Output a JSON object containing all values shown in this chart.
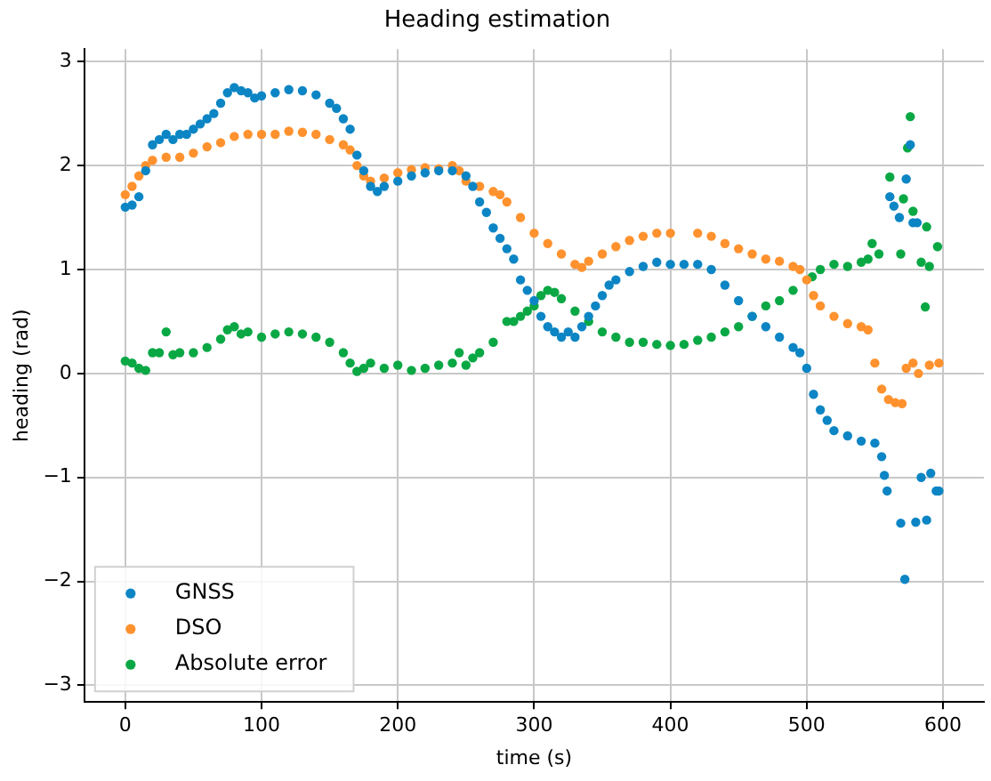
{
  "chart_data": {
    "type": "scatter",
    "title": "Heading estimation",
    "xlabel": "time (s)",
    "ylabel": "heading (rad)",
    "xlim": [
      -30,
      630
    ],
    "ylim": [
      -3.16,
      3.12
    ],
    "xticks": [
      0,
      100,
      200,
      300,
      400,
      500,
      600
    ],
    "yticks": [
      -3,
      -2,
      -1,
      0,
      1,
      2,
      3
    ],
    "grid": true,
    "legend": "bottom left",
    "marker": "circle",
    "series": [
      {
        "name": "GNSS",
        "color": "#0c85c4",
        "x": [
          0,
          5,
          10,
          15,
          20,
          25,
          30,
          35,
          40,
          45,
          50,
          55,
          60,
          65,
          70,
          75,
          80,
          85,
          90,
          95,
          100,
          110,
          120,
          130,
          140,
          150,
          155,
          160,
          165,
          170,
          175,
          180,
          185,
          190,
          200,
          210,
          220,
          230,
          240,
          250,
          255,
          260,
          265,
          270,
          275,
          280,
          285,
          290,
          295,
          300,
          305,
          310,
          315,
          320,
          325,
          330,
          335,
          340,
          345,
          350,
          355,
          360,
          370,
          380,
          390,
          400,
          410,
          420,
          430,
          440,
          450,
          460,
          470,
          480,
          490,
          495,
          500,
          505,
          510,
          515,
          520,
          530,
          540,
          550,
          555,
          557,
          559,
          569,
          572,
          580,
          588,
          584,
          591,
          595,
          597,
          561,
          564,
          568,
          573,
          576,
          578,
          581
        ],
        "values": [
          1.6,
          1.62,
          1.7,
          1.95,
          2.2,
          2.25,
          2.3,
          2.25,
          2.3,
          2.3,
          2.35,
          2.4,
          2.45,
          2.5,
          2.6,
          2.7,
          2.75,
          2.72,
          2.7,
          2.65,
          2.67,
          2.7,
          2.73,
          2.72,
          2.68,
          2.6,
          2.55,
          2.45,
          2.35,
          2.1,
          1.95,
          1.8,
          1.75,
          1.8,
          1.85,
          1.9,
          1.93,
          1.95,
          1.95,
          1.9,
          1.8,
          1.65,
          1.55,
          1.4,
          1.3,
          1.2,
          1.1,
          0.9,
          0.8,
          0.7,
          0.55,
          0.45,
          0.4,
          0.35,
          0.4,
          0.35,
          0.45,
          0.55,
          0.65,
          0.75,
          0.85,
          0.9,
          0.98,
          1.03,
          1.07,
          1.05,
          1.05,
          1.05,
          1.0,
          0.85,
          0.7,
          0.55,
          0.45,
          0.35,
          0.25,
          0.2,
          0.05,
          -0.2,
          -0.35,
          -0.45,
          -0.55,
          -0.6,
          -0.65,
          -0.67,
          -0.8,
          -0.98,
          -1.13,
          -1.44,
          -1.98,
          -1.43,
          -1.41,
          -1.0,
          -0.96,
          -1.13,
          -1.13,
          1.7,
          1.61,
          1.5,
          1.87,
          2.2,
          1.45,
          1.45
        ]
      },
      {
        "name": "DSO",
        "color": "#ff922e",
        "x": [
          0,
          5,
          10,
          15,
          20,
          30,
          40,
          50,
          60,
          70,
          80,
          90,
          100,
          110,
          120,
          130,
          140,
          150,
          160,
          165,
          170,
          175,
          180,
          190,
          200,
          210,
          220,
          230,
          240,
          245,
          250,
          260,
          270,
          275,
          280,
          290,
          300,
          310,
          320,
          330,
          335,
          340,
          350,
          360,
          370,
          380,
          390,
          400,
          420,
          430,
          440,
          450,
          460,
          470,
          480,
          490,
          495,
          500,
          505,
          510,
          520,
          530,
          540,
          545,
          550,
          555,
          560,
          565,
          570,
          573,
          578,
          582,
          590,
          597
        ],
        "values": [
          1.72,
          1.8,
          1.9,
          2.0,
          2.05,
          2.08,
          2.08,
          2.12,
          2.18,
          2.22,
          2.28,
          2.3,
          2.3,
          2.3,
          2.33,
          2.32,
          2.3,
          2.25,
          2.2,
          2.15,
          2.0,
          1.9,
          1.85,
          1.88,
          1.93,
          1.96,
          1.98,
          1.97,
          2.0,
          1.95,
          1.85,
          1.8,
          1.75,
          1.72,
          1.65,
          1.5,
          1.35,
          1.25,
          1.15,
          1.05,
          1.02,
          1.08,
          1.15,
          1.22,
          1.28,
          1.32,
          1.35,
          1.35,
          1.35,
          1.32,
          1.25,
          1.2,
          1.15,
          1.1,
          1.08,
          1.03,
          1.0,
          0.9,
          0.75,
          0.65,
          0.55,
          0.48,
          0.45,
          0.42,
          0.1,
          -0.15,
          -0.25,
          -0.28,
          -0.29,
          0.05,
          0.1,
          0.0,
          0.08,
          0.1
        ]
      },
      {
        "name": "Absolute error",
        "color": "#0aa844",
        "x": [
          0,
          5,
          10,
          15,
          20,
          25,
          30,
          35,
          40,
          50,
          60,
          70,
          75,
          80,
          85,
          90,
          100,
          110,
          120,
          130,
          140,
          150,
          160,
          165,
          170,
          175,
          180,
          190,
          200,
          210,
          220,
          230,
          240,
          245,
          250,
          255,
          260,
          270,
          280,
          285,
          290,
          295,
          300,
          305,
          310,
          315,
          320,
          330,
          340,
          350,
          360,
          370,
          380,
          390,
          400,
          410,
          420,
          430,
          440,
          450,
          460,
          470,
          480,
          490,
          504,
          510,
          520,
          530,
          540,
          545,
          548,
          553,
          561,
          569,
          571,
          574,
          576,
          578,
          584,
          587,
          588,
          590,
          596
        ],
        "values": [
          0.12,
          0.1,
          0.05,
          0.03,
          0.2,
          0.2,
          0.4,
          0.18,
          0.2,
          0.2,
          0.25,
          0.33,
          0.42,
          0.45,
          0.38,
          0.4,
          0.35,
          0.38,
          0.4,
          0.38,
          0.35,
          0.3,
          0.2,
          0.1,
          0.02,
          0.05,
          0.1,
          0.05,
          0.08,
          0.03,
          0.05,
          0.08,
          0.1,
          0.2,
          0.08,
          0.15,
          0.2,
          0.3,
          0.5,
          0.5,
          0.55,
          0.6,
          0.65,
          0.75,
          0.8,
          0.78,
          0.72,
          0.6,
          0.5,
          0.4,
          0.35,
          0.3,
          0.3,
          0.28,
          0.27,
          0.28,
          0.32,
          0.35,
          0.4,
          0.45,
          0.55,
          0.65,
          0.7,
          0.8,
          0.93,
          1.0,
          1.05,
          1.03,
          1.07,
          1.1,
          1.25,
          1.15,
          1.89,
          1.15,
          1.68,
          2.17,
          2.47,
          1.56,
          1.07,
          0.64,
          1.41,
          1.03,
          1.22
        ]
      }
    ]
  }
}
